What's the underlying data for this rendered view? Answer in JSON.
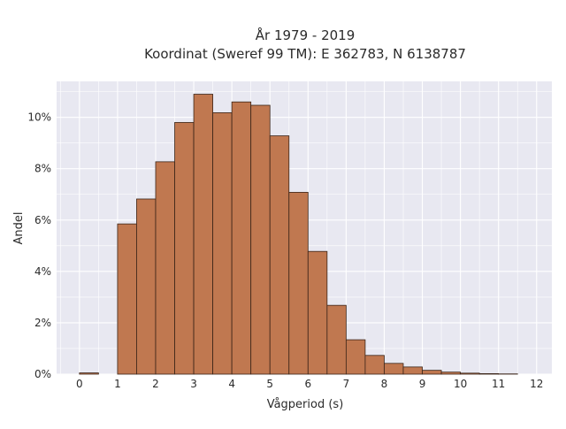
{
  "chart_data": {
    "type": "bar",
    "title": [
      "År 1979 - 2019",
      "Koordinat (Sweref 99 TM): E 362783, N 6138787"
    ],
    "xlabel": "Vågperiod (s)",
    "ylabel": "Andel",
    "x_ticks": [
      0,
      1,
      2,
      3,
      4,
      5,
      6,
      7,
      8,
      9,
      10,
      11,
      12
    ],
    "y_ticks": [
      {
        "value": 0,
        "label": "0%"
      },
      {
        "value": 2,
        "label": "2%"
      },
      {
        "value": 4,
        "label": "4%"
      },
      {
        "value": 6,
        "label": "6%"
      },
      {
        "value": 8,
        "label": "8%"
      },
      {
        "value": 10,
        "label": "10%"
      }
    ],
    "xlim": [
      -0.6,
      12.4
    ],
    "ylim": [
      0,
      11.4
    ],
    "bin_width": 0.5,
    "bins": [
      {
        "start": 0.0,
        "value": 0.05
      },
      {
        "start": 0.5,
        "value": 0.0
      },
      {
        "start": 1.0,
        "value": 5.85
      },
      {
        "start": 1.5,
        "value": 6.82
      },
      {
        "start": 2.0,
        "value": 8.27
      },
      {
        "start": 2.5,
        "value": 9.8
      },
      {
        "start": 3.0,
        "value": 10.9
      },
      {
        "start": 3.5,
        "value": 10.18
      },
      {
        "start": 4.0,
        "value": 10.6
      },
      {
        "start": 4.5,
        "value": 10.47
      },
      {
        "start": 5.0,
        "value": 9.28
      },
      {
        "start": 5.5,
        "value": 7.08
      },
      {
        "start": 6.0,
        "value": 4.78
      },
      {
        "start": 6.5,
        "value": 2.68
      },
      {
        "start": 7.0,
        "value": 1.34
      },
      {
        "start": 7.5,
        "value": 0.73
      },
      {
        "start": 8.0,
        "value": 0.42
      },
      {
        "start": 8.5,
        "value": 0.28
      },
      {
        "start": 9.0,
        "value": 0.15
      },
      {
        "start": 9.5,
        "value": 0.08
      },
      {
        "start": 10.0,
        "value": 0.04
      },
      {
        "start": 10.5,
        "value": 0.02
      },
      {
        "start": 11.0,
        "value": 0.01
      }
    ],
    "grid": true,
    "colors": {
      "bar_fill": "#c07850",
      "bar_edge": "#3a2418",
      "plot_bg": "#e8e8f1",
      "grid": "#ffffff"
    }
  }
}
